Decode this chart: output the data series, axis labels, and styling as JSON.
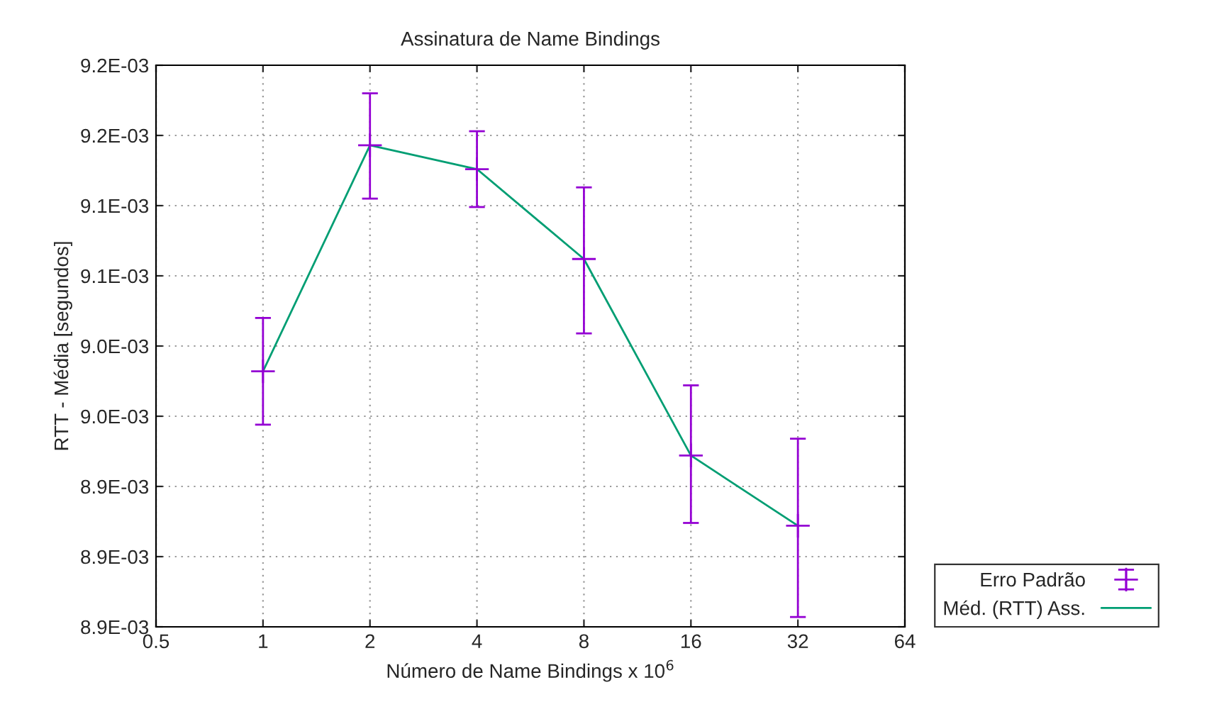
{
  "chart_data": {
    "type": "line",
    "title": "Assinatura de Name Bindings",
    "xlabel": "Número de Name Bindings x 10$^{6}$",
    "ylabel": "RTT - Média [segundos]",
    "log": "x",
    "x": [
      1,
      2,
      4,
      8,
      16,
      32
    ],
    "xlim": [
      0.5,
      64
    ],
    "xticks": [
      0.5,
      1,
      2,
      4,
      8,
      16,
      32,
      64
    ],
    "ylim": [
      0.00885,
      0.00925
    ],
    "yticks": [
      {
        "value": 0.00885,
        "label": "8.9E-03"
      },
      {
        "value": 0.0089,
        "label": "8.9E-03"
      },
      {
        "value": 0.00895,
        "label": "8.9E-03"
      },
      {
        "value": 0.009,
        "label": "9.0E-03"
      },
      {
        "value": 0.00905,
        "label": "9.0E-03"
      },
      {
        "value": 0.0091,
        "label": "9.1E-03"
      },
      {
        "value": 0.00915,
        "label": "9.1E-03"
      },
      {
        "value": 0.0092,
        "label": "9.2E-03"
      },
      {
        "value": 0.00925,
        "label": "9.2E-03"
      }
    ],
    "grid": true,
    "legend": "bottom right",
    "series": [
      {
        "name": "Erro Padrão",
        "type": "scatter",
        "marker": "cross",
        "color": "#9400d3",
        "values": [
          0.009032,
          0.009193,
          0.009176,
          0.009112,
          0.008972,
          0.008922
        ],
        "errors": [
          [
            0.008994,
            0.00907
          ],
          [
            0.009155,
            0.00923
          ],
          [
            0.009149,
            0.009203
          ],
          [
            0.009059,
            0.009163
          ],
          [
            0.008924,
            0.009022
          ],
          [
            0.008857,
            0.008984
          ]
        ]
      },
      {
        "name": "Méd. (RTT) Ass.",
        "marker": "none",
        "line_style": "solid",
        "color": "#009e73",
        "values": [
          0.009032,
          0.009193,
          0.009176,
          0.009112,
          0.008972,
          0.008922
        ]
      }
    ]
  }
}
